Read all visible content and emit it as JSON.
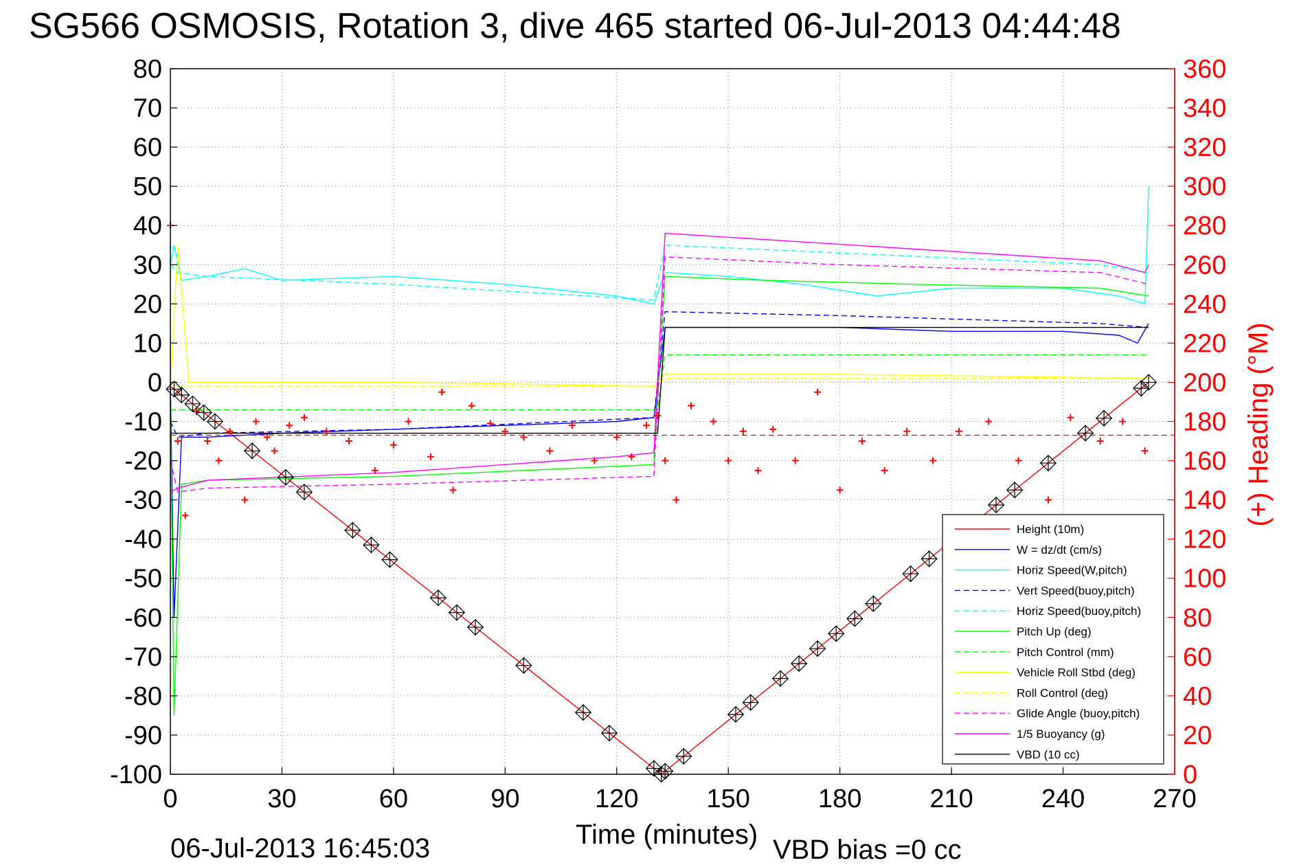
{
  "chart_data": {
    "type": "line",
    "title": "SG566 OSMOSIS, Rotation 3, dive 465 started 06-Jul-2013 04:44:48",
    "xlabel": "Time (minutes)",
    "ylabel_right": "(+) Heading (°M)",
    "xlim": [
      0,
      270
    ],
    "ylim": [
      -100,
      80
    ],
    "ylim_right": [
      0,
      360
    ],
    "grid": true,
    "legend_position": "bottom-right",
    "x_ticks": [
      "0",
      "30",
      "60",
      "90",
      "120",
      "150",
      "180",
      "210",
      "240",
      "270"
    ],
    "y_ticks": [
      "80",
      "70",
      "60",
      "50",
      "40",
      "30",
      "20",
      "10",
      "0",
      "-10",
      "-20",
      "-30",
      "-40",
      "-50",
      "-60",
      "-70",
      "-80",
      "-90",
      "-100"
    ],
    "y_ticks_right": [
      "360",
      "340",
      "320",
      "300",
      "280",
      "260",
      "240",
      "220",
      "200",
      "180",
      "160",
      "140",
      "120",
      "100",
      "80",
      "60",
      "40",
      "20",
      "0"
    ],
    "footer_left": "06-Jul-2013 16:45:03",
    "footer_right": "VBD bias =0 cc",
    "colors": {
      "red": "#ff0000",
      "blue": "#0000ff",
      "cyan": "#00ffff",
      "green": "#00ff00",
      "yellow": "#ffff00",
      "magenta": "#ff00ff",
      "black": "#000000",
      "grid": "#7f7f7f"
    },
    "series": [
      {
        "name": "Height (10m)",
        "color": "#ff0000",
        "style": "solid",
        "x": [
          0,
          132,
          263
        ],
        "y": [
          -1,
          -100,
          0
        ]
      },
      {
        "name": "W = dz/dt (cm/s)",
        "color": "#0000ff",
        "style": "solid",
        "x": [
          0,
          1,
          3,
          10,
          30,
          60,
          90,
          120,
          130,
          133,
          150,
          180,
          210,
          240,
          255,
          260,
          263
        ],
        "y": [
          0,
          -60,
          -14,
          -14,
          -13,
          -12,
          -11,
          -10,
          -9,
          14,
          14,
          14,
          13,
          13,
          12,
          10,
          15
        ]
      },
      {
        "name": "Horiz Speed(W,pitch)",
        "color": "#00ffff",
        "style": "solid",
        "x": [
          0,
          1,
          3,
          10,
          20,
          30,
          60,
          90,
          120,
          130,
          133,
          150,
          170,
          190,
          210,
          240,
          255,
          262,
          263
        ],
        "y": [
          30,
          35,
          26,
          27,
          29,
          26,
          27,
          25,
          22,
          20,
          28,
          27,
          25,
          22,
          24,
          24,
          22,
          20,
          50
        ]
      },
      {
        "name": "Vert Speed(buoy,pitch)",
        "color": "#0000ff",
        "style": "dashed",
        "x": [
          0,
          2,
          10,
          60,
          130,
          133,
          180,
          250,
          263
        ],
        "y": [
          -10,
          -14,
          -13,
          -12,
          -9,
          18,
          17,
          15,
          14
        ]
      },
      {
        "name": "Horiz Speed(buoy,pitch)",
        "color": "#00ffff",
        "style": "dashed",
        "x": [
          0,
          2,
          10,
          60,
          130,
          133,
          180,
          250,
          263
        ],
        "y": [
          30,
          28,
          27,
          25,
          21,
          35,
          33,
          30,
          28
        ]
      },
      {
        "name": "Pitch Up (deg)",
        "color": "#00ff00",
        "style": "solid",
        "x": [
          0,
          1,
          3,
          10,
          60,
          130,
          133,
          160,
          200,
          250,
          263
        ],
        "y": [
          -5,
          -85,
          -26,
          -25,
          -24,
          -21,
          27,
          26,
          25,
          24,
          22
        ]
      },
      {
        "name": "Pitch Control (mm)",
        "color": "#00ff00",
        "style": "dashed",
        "x": [
          0,
          5,
          131,
          133,
          263
        ],
        "y": [
          -7,
          -7,
          -7,
          7,
          7
        ]
      },
      {
        "name": "Vehicle Roll Stbd (deg)",
        "color": "#ffff00",
        "style": "solid",
        "x": [
          0,
          2,
          5,
          60,
          130,
          133,
          180,
          263
        ],
        "y": [
          -2,
          35,
          0,
          0,
          -1,
          2,
          2,
          1
        ]
      },
      {
        "name": "Roll Control (deg)",
        "color": "#ffff00",
        "style": "dashed",
        "x": [
          0,
          5,
          131,
          133,
          263
        ],
        "y": [
          -1,
          -1,
          -1,
          1,
          1
        ]
      },
      {
        "name": "Glide Angle (buoy,pitch)",
        "color": "#ff00ff",
        "style": "dashed",
        "x": [
          0,
          2,
          10,
          60,
          130,
          133,
          180,
          250,
          263
        ],
        "y": [
          -20,
          -28,
          -27,
          -26,
          -24,
          32,
          30,
          28,
          25
        ]
      },
      {
        "name": "1/5 Buoyancy (g)",
        "color": "#ff00ff",
        "style": "solid",
        "x": [
          0,
          2,
          10,
          60,
          120,
          130,
          133,
          150,
          200,
          250,
          262,
          263
        ],
        "y": [
          -28,
          -27,
          -25,
          -23,
          -19,
          -18,
          38,
          37,
          34,
          31,
          28,
          30
        ]
      },
      {
        "name": "VBD (10 cc)",
        "color": "#000000",
        "style": "solid",
        "x": [
          0,
          3,
          131,
          133,
          263
        ],
        "y": [
          -13,
          -13,
          -13,
          14,
          14
        ]
      }
    ],
    "heading_mean": {
      "color": "#ff0000",
      "style": "dashed",
      "value_deg": 173
    },
    "heading_points": {
      "color": "#ff0000",
      "marker": "+",
      "x": [
        0,
        2,
        4,
        7,
        10,
        13,
        16,
        20,
        23,
        26,
        28,
        32,
        36,
        42,
        48,
        55,
        60,
        64,
        70,
        73,
        76,
        81,
        86,
        90,
        95,
        102,
        108,
        114,
        120,
        124,
        128,
        131,
        133,
        136,
        140,
        146,
        150,
        154,
        158,
        162,
        168,
        174,
        180,
        186,
        192,
        198,
        205,
        212,
        220,
        228,
        236,
        242,
        250,
        256,
        262
      ],
      "y": [
        280,
        170,
        132,
        185,
        170,
        160,
        175,
        140,
        180,
        172,
        165,
        178,
        182,
        175,
        170,
        155,
        168,
        180,
        162,
        195,
        145,
        188,
        179,
        175,
        172,
        165,
        178,
        160,
        172,
        162,
        178,
        183,
        160,
        140,
        188,
        180,
        160,
        175,
        155,
        176,
        160,
        195,
        145,
        170,
        155,
        175,
        160,
        175,
        180,
        160,
        140,
        182,
        170,
        180,
        165
      ]
    },
    "vbd_markers": {
      "color": "#000000",
      "marker": "box-x",
      "x": [
        1,
        3,
        6,
        9,
        12,
        22,
        31,
        36,
        49,
        54,
        59,
        72,
        77,
        82,
        95,
        111,
        118,
        130,
        132,
        133,
        138,
        152,
        156,
        164,
        169,
        174,
        179,
        184,
        189,
        199,
        204,
        222,
        227,
        236,
        246,
        251,
        261,
        263
      ]
    }
  }
}
